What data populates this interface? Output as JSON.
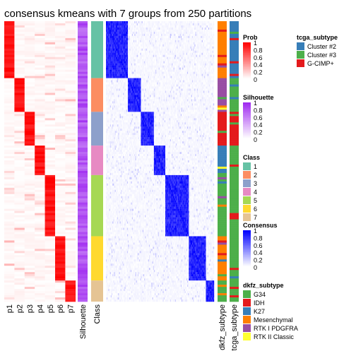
{
  "chart_data": {
    "type": "heatmap",
    "title": "consensus kmeans with 7 groups from 250 partitions",
    "n_groups": 7,
    "group_sizes": [
      27,
      16,
      16,
      14,
      29,
      21,
      10
    ],
    "partition_labels": [
      "p1",
      "p2",
      "p3",
      "p4",
      "p5",
      "p6",
      "p7"
    ],
    "column_labels": {
      "silhouette": "Silhouette",
      "class": "Class",
      "dkfz": "dkfz_subtype",
      "tcga": "tcga_subtype"
    },
    "legends": {
      "prob": {
        "title": "Prob",
        "ticks": [
          "1",
          "0.8",
          "0.6",
          "0.4",
          "0.2",
          "0"
        ],
        "low": "#ffffff",
        "high": "#ff0000"
      },
      "silhouette": {
        "title": "Silhouette",
        "ticks": [
          "1",
          "0.8",
          "0.6",
          "0.4",
          "0.2",
          "0"
        ],
        "low": "#ffffff",
        "high": "#9f2af0"
      },
      "class": {
        "title": "Class",
        "items": [
          {
            "label": "1",
            "color": "#66c2a5"
          },
          {
            "label": "2",
            "color": "#fc8d62"
          },
          {
            "label": "3",
            "color": "#8da0cb"
          },
          {
            "label": "4",
            "color": "#e78ac3"
          },
          {
            "label": "5",
            "color": "#a6d854"
          },
          {
            "label": "6",
            "color": "#ffd92f"
          },
          {
            "label": "7",
            "color": "#e5c494"
          }
        ]
      },
      "consensus": {
        "title": "Consensus",
        "ticks": [
          "1",
          "0.8",
          "0.6",
          "0.4",
          "0.2",
          "0"
        ],
        "low": "#ffffff",
        "high": "#0000ff"
      },
      "dkfz_subtype": {
        "title": "dkfz_subtype",
        "items": [
          {
            "label": "G34",
            "color": "#4daf4a"
          },
          {
            "label": "IDH",
            "color": "#e41a1c"
          },
          {
            "label": "K27",
            "color": "#377eb8"
          },
          {
            "label": "Mesenchymal",
            "color": "#ff7f00"
          },
          {
            "label": "RTK I PDGFRA",
            "color": "#984ea3"
          },
          {
            "label": "RTK II Classic",
            "color": "#ffff33"
          }
        ]
      },
      "tcga_subtype": {
        "title": "tcga_subtype",
        "items": [
          {
            "label": "Cluster #2",
            "color": "#377eb8"
          },
          {
            "label": "Cluster #3",
            "color": "#4daf4a"
          },
          {
            "label": "G-CIMP+",
            "color": "#e41a1c"
          }
        ]
      }
    }
  }
}
